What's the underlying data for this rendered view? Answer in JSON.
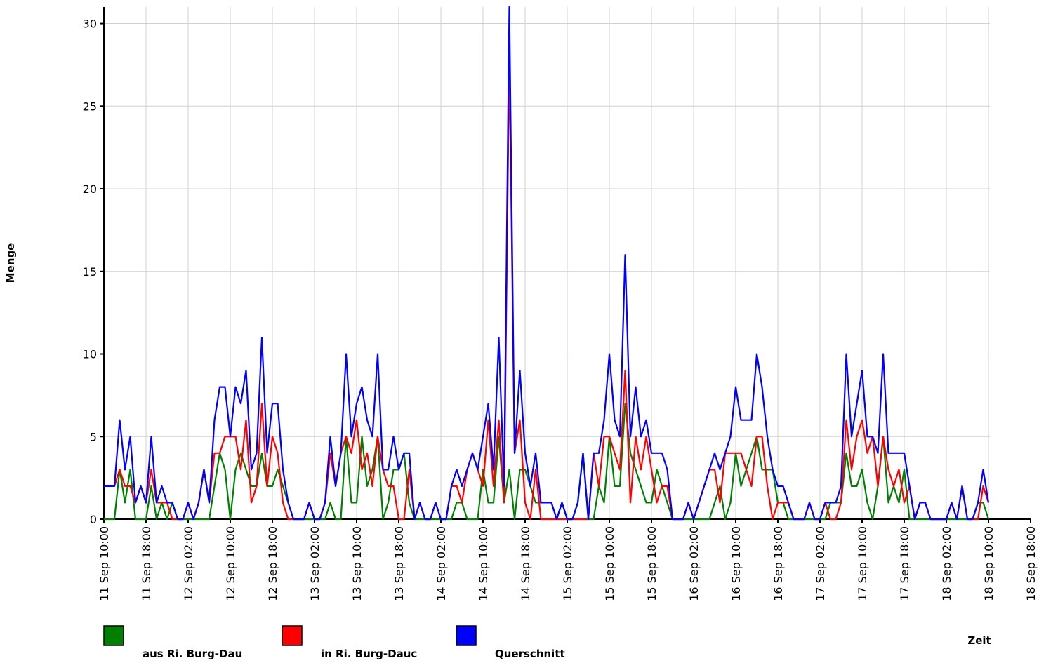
{
  "chart_data": {
    "type": "line",
    "y_label": "Menge",
    "x_label": "Zeit",
    "x": [
      "11 Sep 10:00",
      "11 Sep 11:00",
      "11 Sep 12:00",
      "11 Sep 13:00",
      "11 Sep 14:00",
      "11 Sep 15:00",
      "11 Sep 16:00",
      "11 Sep 17:00",
      "11 Sep 18:00",
      "11 Sep 19:00",
      "11 Sep 20:00",
      "11 Sep 21:00",
      "11 Sep 22:00",
      "11 Sep 23:00",
      "12 Sep 00:00",
      "12 Sep 01:00",
      "12 Sep 02:00",
      "12 Sep 03:00",
      "12 Sep 04:00",
      "12 Sep 05:00",
      "12 Sep 06:00",
      "12 Sep 07:00",
      "12 Sep 08:00",
      "12 Sep 09:00",
      "12 Sep 10:00",
      "12 Sep 11:00",
      "12 Sep 12:00",
      "12 Sep 13:00",
      "12 Sep 14:00",
      "12 Sep 15:00",
      "12 Sep 16:00",
      "12 Sep 17:00",
      "12 Sep 18:00",
      "12 Sep 19:00",
      "12 Sep 20:00",
      "12 Sep 21:00",
      "12 Sep 22:00",
      "12 Sep 23:00",
      "13 Sep 00:00",
      "13 Sep 01:00",
      "13 Sep 02:00",
      "13 Sep 03:00",
      "13 Sep 04:00",
      "13 Sep 05:00",
      "13 Sep 06:00",
      "13 Sep 07:00",
      "13 Sep 08:00",
      "13 Sep 09:00",
      "13 Sep 10:00",
      "13 Sep 11:00",
      "13 Sep 12:00",
      "13 Sep 13:00",
      "13 Sep 14:00",
      "13 Sep 15:00",
      "13 Sep 16:00",
      "13 Sep 17:00",
      "13 Sep 18:00",
      "13 Sep 19:00",
      "13 Sep 20:00",
      "13 Sep 21:00",
      "13 Sep 22:00",
      "13 Sep 23:00",
      "14 Sep 00:00",
      "14 Sep 01:00",
      "14 Sep 02:00",
      "14 Sep 03:00",
      "14 Sep 04:00",
      "14 Sep 05:00",
      "14 Sep 06:00",
      "14 Sep 07:00",
      "14 Sep 08:00",
      "14 Sep 09:00",
      "14 Sep 10:00",
      "14 Sep 11:00",
      "14 Sep 12:00",
      "14 Sep 13:00",
      "14 Sep 14:00",
      "14 Sep 15:00",
      "14 Sep 16:00",
      "14 Sep 17:00",
      "14 Sep 18:00",
      "14 Sep 19:00",
      "14 Sep 20:00",
      "14 Sep 21:00",
      "14 Sep 22:00",
      "14 Sep 23:00",
      "15 Sep 00:00",
      "15 Sep 01:00",
      "15 Sep 02:00",
      "15 Sep 03:00",
      "15 Sep 04:00",
      "15 Sep 05:00",
      "15 Sep 06:00",
      "15 Sep 07:00",
      "15 Sep 08:00",
      "15 Sep 09:00",
      "15 Sep 10:00",
      "15 Sep 11:00",
      "15 Sep 12:00",
      "15 Sep 13:00",
      "15 Sep 14:00",
      "15 Sep 15:00",
      "15 Sep 16:00",
      "15 Sep 17:00",
      "15 Sep 18:00",
      "15 Sep 19:00",
      "15 Sep 20:00",
      "15 Sep 21:00",
      "15 Sep 22:00",
      "15 Sep 23:00",
      "16 Sep 00:00",
      "16 Sep 01:00",
      "16 Sep 02:00",
      "16 Sep 03:00",
      "16 Sep 04:00",
      "16 Sep 05:00",
      "16 Sep 06:00",
      "16 Sep 07:00",
      "16 Sep 08:00",
      "16 Sep 09:00",
      "16 Sep 10:00",
      "16 Sep 11:00",
      "16 Sep 12:00",
      "16 Sep 13:00",
      "16 Sep 14:00",
      "16 Sep 15:00",
      "16 Sep 16:00",
      "16 Sep 17:00",
      "16 Sep 18:00",
      "16 Sep 19:00",
      "16 Sep 20:00",
      "16 Sep 21:00",
      "16 Sep 22:00",
      "16 Sep 23:00",
      "17 Sep 00:00",
      "17 Sep 01:00",
      "17 Sep 02:00",
      "17 Sep 03:00",
      "17 Sep 04:00",
      "17 Sep 05:00",
      "17 Sep 06:00",
      "17 Sep 07:00",
      "17 Sep 08:00",
      "17 Sep 09:00",
      "17 Sep 10:00",
      "17 Sep 11:00",
      "17 Sep 12:00",
      "17 Sep 13:00",
      "17 Sep 14:00",
      "17 Sep 15:00",
      "17 Sep 16:00",
      "17 Sep 17:00",
      "17 Sep 18:00",
      "17 Sep 19:00",
      "17 Sep 20:00",
      "17 Sep 21:00",
      "17 Sep 22:00",
      "17 Sep 23:00",
      "18 Sep 00:00",
      "18 Sep 01:00",
      "18 Sep 02:00",
      "18 Sep 03:00",
      "18 Sep 04:00",
      "18 Sep 05:00",
      "18 Sep 06:00",
      "18 Sep 07:00",
      "18 Sep 08:00",
      "18 Sep 09:00",
      "18 Sep 10:00"
    ],
    "series": [
      {
        "name": "aus Ri. Burg-Dau",
        "color": "#008000",
        "values": [
          0,
          0,
          0,
          3,
          1,
          3,
          0,
          0,
          0,
          2,
          0,
          1,
          0,
          1,
          0,
          0,
          0,
          0,
          0,
          0,
          0,
          2,
          4,
          3,
          0,
          3,
          4,
          3,
          2,
          2,
          4,
          2,
          2,
          3,
          2,
          1,
          0,
          0,
          0,
          0,
          0,
          0,
          0,
          1,
          0,
          0,
          5,
          1,
          1,
          5,
          2,
          3,
          5,
          0,
          1,
          3,
          3,
          4,
          1,
          0,
          0,
          0,
          0,
          0,
          0,
          0,
          0,
          1,
          1,
          0,
          0,
          0,
          3,
          1,
          1,
          5,
          1,
          3,
          0,
          3,
          3,
          2,
          1,
          1,
          1,
          1,
          0,
          1,
          0,
          0,
          1,
          4,
          0,
          0,
          2,
          1,
          5,
          2,
          2,
          7,
          4,
          3,
          2,
          1,
          1,
          3,
          2,
          1,
          0,
          0,
          0,
          0,
          0,
          0,
          0,
          0,
          1,
          2,
          0,
          1,
          4,
          2,
          3,
          4,
          5,
          3,
          3,
          3,
          1,
          1,
          0,
          0,
          0,
          0,
          0,
          0,
          0,
          0,
          1,
          1,
          1,
          4,
          2,
          2,
          3,
          1,
          0,
          2,
          5,
          1,
          2,
          1,
          3,
          0,
          0,
          0,
          0,
          0,
          0,
          0,
          0,
          0,
          0,
          0,
          0,
          0,
          1,
          1,
          0
        ]
      },
      {
        "name": "in Ri. Burg-Dauc",
        "color": "#ff0000",
        "values": [
          2,
          2,
          2,
          3,
          2,
          2,
          1,
          2,
          1,
          3,
          1,
          1,
          1,
          0,
          0,
          0,
          1,
          0,
          1,
          3,
          1,
          4,
          4,
          5,
          5,
          5,
          3,
          6,
          1,
          2,
          7,
          2,
          5,
          4,
          1,
          0,
          0,
          0,
          0,
          1,
          0,
          0,
          1,
          4,
          2,
          4,
          5,
          4,
          6,
          3,
          4,
          2,
          5,
          3,
          2,
          2,
          0,
          0,
          3,
          0,
          1,
          0,
          0,
          1,
          0,
          0,
          2,
          2,
          1,
          3,
          4,
          3,
          2,
          6,
          2,
          6,
          1,
          28,
          4,
          6,
          1,
          0,
          3,
          0,
          0,
          0,
          0,
          0,
          0,
          0,
          0,
          0,
          0,
          4,
          2,
          5,
          5,
          4,
          3,
          9,
          1,
          5,
          3,
          5,
          3,
          1,
          2,
          2,
          0,
          0,
          0,
          1,
          0,
          1,
          2,
          3,
          3,
          1,
          4,
          4,
          4,
          4,
          3,
          2,
          5,
          5,
          2,
          0,
          1,
          1,
          1,
          0,
          0,
          0,
          1,
          0,
          0,
          1,
          0,
          0,
          1,
          6,
          3,
          5,
          6,
          4,
          5,
          2,
          5,
          3,
          2,
          3,
          1,
          2,
          0,
          1,
          1,
          0,
          0,
          0,
          0,
          1,
          0,
          2,
          0,
          0,
          0,
          2,
          1
        ]
      },
      {
        "name": "Querschnitt",
        "color": "#0000ff",
        "values": [
          2,
          2,
          2,
          6,
          3,
          5,
          1,
          2,
          1,
          5,
          1,
          2,
          1,
          1,
          0,
          0,
          1,
          0,
          1,
          3,
          1,
          6,
          8,
          8,
          5,
          8,
          7,
          9,
          3,
          4,
          11,
          4,
          7,
          7,
          3,
          1,
          0,
          0,
          0,
          1,
          0,
          0,
          1,
          5,
          2,
          4,
          10,
          5,
          7,
          8,
          6,
          5,
          10,
          3,
          3,
          5,
          3,
          4,
          4,
          0,
          1,
          0,
          0,
          1,
          0,
          0,
          2,
          3,
          2,
          3,
          4,
          3,
          5,
          7,
          3,
          11,
          2,
          31,
          4,
          9,
          4,
          2,
          4,
          1,
          1,
          1,
          0,
          1,
          0,
          0,
          1,
          4,
          0,
          4,
          4,
          6,
          10,
          6,
          5,
          16,
          5,
          8,
          5,
          6,
          4,
          4,
          4,
          3,
          0,
          0,
          0,
          1,
          0,
          1,
          2,
          3,
          4,
          3,
          4,
          5,
          8,
          6,
          6,
          6,
          10,
          8,
          5,
          3,
          2,
          2,
          1,
          0,
          0,
          0,
          1,
          0,
          0,
          1,
          1,
          1,
          2,
          10,
          5,
          7,
          9,
          5,
          5,
          4,
          10,
          4,
          4,
          4,
          4,
          2,
          0,
          1,
          1,
          0,
          0,
          0,
          0,
          1,
          0,
          2,
          0,
          0,
          1,
          3,
          1
        ]
      }
    ],
    "xlim": [
      "11 Sep 10:00",
      "18 Sep 18:00"
    ],
    "xticks": [
      "11 Sep 10:00",
      "11 Sep 18:00",
      "12 Sep 02:00",
      "12 Sep 10:00",
      "12 Sep 18:00",
      "13 Sep 02:00",
      "13 Sep 10:00",
      "13 Sep 18:00",
      "14 Sep 02:00",
      "14 Sep 10:00",
      "14 Sep 18:00",
      "15 Sep 02:00",
      "15 Sep 10:00",
      "15 Sep 18:00",
      "16 Sep 02:00",
      "16 Sep 10:00",
      "16 Sep 18:00",
      "17 Sep 02:00",
      "17 Sep 10:00",
      "17 Sep 18:00",
      "18 Sep 02:00",
      "18 Sep 10:00",
      "18 Sep 18:00"
    ],
    "ylim": [
      0,
      31
    ],
    "yticks": [
      0,
      5,
      10,
      15,
      20,
      25,
      30
    ],
    "grid": true
  }
}
